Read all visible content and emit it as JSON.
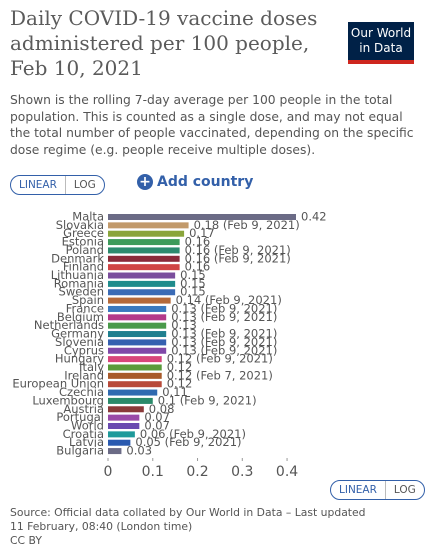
{
  "chart_data": {
    "type": "hbar",
    "title": "Daily COVID-19 vaccine doses administered per 100 people, Feb 10, 2021",
    "subtitle": "Shown is the rolling 7-day average per 100 people in the total population. This is counted as a single dose, and may not equal the total number of people vaccinated, depending on the specific dose regime (e.g. people receive multiple doses).",
    "categories": [
      "Malta",
      "Slovakia",
      "Greece",
      "Estonia",
      "Poland",
      "Denmark",
      "Finland",
      "Lithuania",
      "Romania",
      "Sweden",
      "Spain",
      "France",
      "Belgium",
      "Netherlands",
      "Germany",
      "Slovenia",
      "Cyprus",
      "Hungary",
      "Italy",
      "Ireland",
      "European Union",
      "Czechia",
      "Luxembourg",
      "Austria",
      "Portugal",
      "World",
      "Croatia",
      "Latvia",
      "Bulgaria"
    ],
    "values": [
      0.42,
      0.18,
      0.17,
      0.16,
      0.16,
      0.16,
      0.16,
      0.15,
      0.15,
      0.15,
      0.14,
      0.13,
      0.13,
      0.13,
      0.13,
      0.13,
      0.13,
      0.12,
      0.12,
      0.12,
      0.12,
      0.11,
      0.1,
      0.08,
      0.07,
      0.07,
      0.06,
      0.05,
      0.03
    ],
    "value_labels": [
      "0.42",
      "0.18 (Feb 9, 2021)",
      "0.17",
      "0.16",
      "0.16 (Feb 9, 2021)",
      "0.16 (Feb 9, 2021)",
      "0.16",
      "0.15",
      "0.15",
      "0.15",
      "0.14 (Feb 9, 2021)",
      "0.13 (Feb 9, 2021)",
      "0.13 (Feb 9, 2021)",
      "0.13",
      "0.13 (Feb 9, 2021)",
      "0.13 (Feb 9, 2021)",
      "0.13 (Feb 9, 2021)",
      "0.12 (Feb 9, 2021)",
      "0.12",
      "0.12 (Feb 7, 2021)",
      "0.12",
      "0.11",
      "0.1 (Feb 9, 2021)",
      "0.08",
      "0.07",
      "0.07",
      "0.06 (Feb 9, 2021)",
      "0.05 (Feb 9, 2021)",
      "0.03"
    ],
    "colors": [
      "#6b6b86",
      "#c29a6b",
      "#8aa53b",
      "#3d9a5a",
      "#2c8a6e",
      "#8a2a3a",
      "#d04545",
      "#7b4d9c",
      "#1f8c8c",
      "#3b6bb5",
      "#b56a3a",
      "#3a7abf",
      "#b43a8a",
      "#4a9a4a",
      "#1f7f8f",
      "#3560b0",
      "#8048a8",
      "#d8457a",
      "#5a9a3a",
      "#a85a2a",
      "#b84a3a",
      "#2f6ab0",
      "#2a8a6a",
      "#8a3a3a",
      "#9a4aa8",
      "#6a4ab0",
      "#1f9a9a",
      "#2a5ab0",
      "#6b6b86"
    ],
    "xlim": [
      0,
      0.42
    ],
    "xticks": [
      0,
      0.1,
      0.2,
      0.3,
      0.4
    ],
    "grid": false
  },
  "logo": [
    "Our World",
    "in Data"
  ],
  "controls": {
    "linear": "LINEAR",
    "log": "LOG",
    "add_country": "Add country"
  },
  "footer": {
    "source": "Source: Official data collated by Our World in Data – Last updated 11 February, 08:40 (London time)",
    "license": "CC BY"
  }
}
